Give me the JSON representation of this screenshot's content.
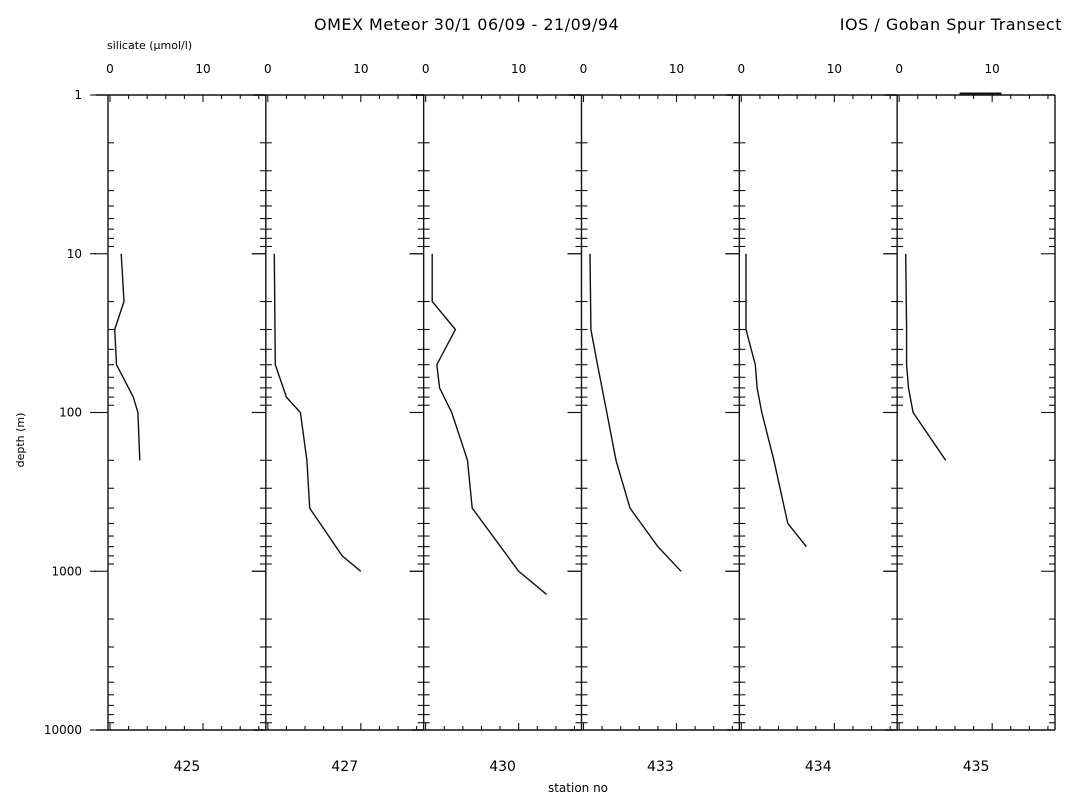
{
  "chart_data": {
    "type": "line",
    "title": "OMEX Meteor 30/1   06/09 - 21/09/94",
    "subtitle": "IOS / Goban Spur Transect",
    "x_axis_label": "silicate (µmol/l)",
    "y_axis_label": "depth (m)",
    "bottom_label": "station no",
    "y_scale": "log",
    "y_reversed": true,
    "y_range": [
      1,
      10000
    ],
    "y_ticks": [
      1,
      10,
      100,
      1000,
      10000
    ],
    "x_range": [
      0,
      16
    ],
    "x_tick_labels": [
      0,
      10
    ],
    "grid": false,
    "panels": [
      {
        "station": "425",
        "points": [
          [
            1.2,
            10
          ],
          [
            1.5,
            20
          ],
          [
            0.5,
            30
          ],
          [
            0.7,
            50
          ],
          [
            2.5,
            80
          ],
          [
            3.0,
            100
          ],
          [
            3.2,
            200
          ]
        ]
      },
      {
        "station": "427",
        "points": [
          [
            0.7,
            10
          ],
          [
            0.8,
            50
          ],
          [
            2.0,
            80
          ],
          [
            3.5,
            100
          ],
          [
            4.2,
            200
          ],
          [
            4.5,
            400
          ],
          [
            8.0,
            800
          ],
          [
            10.0,
            1000
          ]
        ]
      },
      {
        "station": "430",
        "points": [
          [
            0.7,
            10
          ],
          [
            0.7,
            20
          ],
          [
            3.2,
            30
          ],
          [
            1.2,
            50
          ],
          [
            1.5,
            70
          ],
          [
            2.8,
            100
          ],
          [
            4.5,
            200
          ],
          [
            5.0,
            400
          ],
          [
            10.0,
            1000
          ],
          [
            13.0,
            1400
          ]
        ]
      },
      {
        "station": "433",
        "points": [
          [
            0.7,
            10
          ],
          [
            0.8,
            30
          ],
          [
            1.5,
            50
          ],
          [
            2.5,
            100
          ],
          [
            3.5,
            200
          ],
          [
            5.0,
            400
          ],
          [
            8.0,
            700
          ],
          [
            10.5,
            1000
          ]
        ]
      },
      {
        "station": "434",
        "points": [
          [
            0.5,
            10
          ],
          [
            0.5,
            30
          ],
          [
            1.5,
            50
          ],
          [
            1.7,
            70
          ],
          [
            2.2,
            100
          ],
          [
            3.5,
            200
          ],
          [
            5.0,
            500
          ],
          [
            7.0,
            700
          ]
        ]
      },
      {
        "station": "435",
        "points": [
          [
            0.7,
            10
          ],
          [
            0.8,
            30
          ],
          [
            0.8,
            50
          ],
          [
            1.0,
            70
          ],
          [
            1.5,
            100
          ],
          [
            5.0,
            200
          ]
        ]
      }
    ],
    "surface_marker": {
      "station": "435",
      "x_range": [
        6.5,
        11
      ]
    }
  }
}
